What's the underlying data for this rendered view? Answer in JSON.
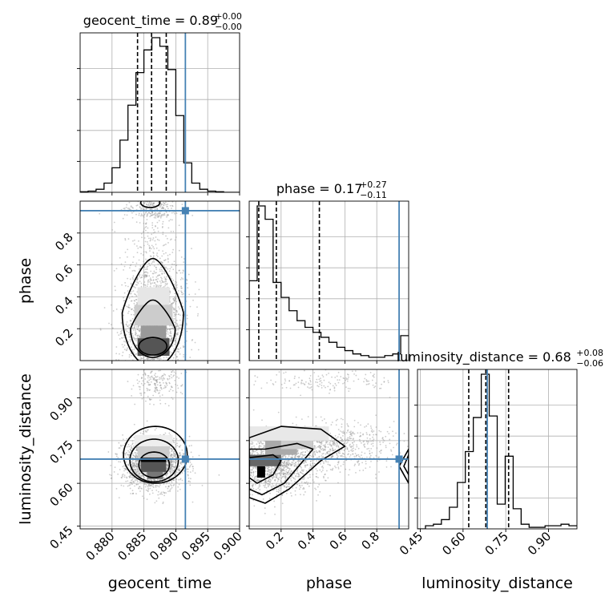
{
  "chart_data": {
    "type": "corner",
    "parameters": [
      "geocent_time",
      "phase",
      "luminosity_distance"
    ],
    "ranges": {
      "geocent_time": [
        0.875,
        0.9
      ],
      "phase": [
        0.0,
        1.0
      ],
      "luminosity_distance": [
        0.44,
        1.0
      ]
    },
    "truths": {
      "geocent_time": 0.8915,
      "phase": 0.94,
      "luminosity_distance": 0.685
    },
    "colors": {
      "truth": "#4682b4",
      "hist": "#000000",
      "grid": "#b0b0b0",
      "scatter": "#9a9a9a"
    },
    "axis_labels": {
      "x": [
        "geocent_time",
        "phase",
        "luminosity_distance"
      ],
      "y": [
        "phase",
        "luminosity_distance"
      ]
    },
    "ticks": {
      "geocent_time": [
        "0.880",
        "0.885",
        "0.890",
        "0.895",
        "0.900"
      ],
      "phase_x": [
        "0.2",
        "0.4",
        "0.6",
        "0.8"
      ],
      "phase_y": [
        "0.2",
        "0.4",
        "0.6",
        "0.8"
      ],
      "luminosity_distance": [
        "0.45",
        "0.60",
        "0.75",
        "0.90"
      ]
    },
    "tick_values": {
      "geocent_time": [
        0.88,
        0.885,
        0.89,
        0.895,
        0.9
      ],
      "phase": [
        0.2,
        0.4,
        0.6,
        0.8
      ],
      "luminosity_distance": [
        0.45,
        0.6,
        0.75,
        0.9
      ]
    },
    "titles": {
      "geocent_time": {
        "label": "geocent_time = 0.89",
        "plus": "+0.00",
        "minus": "−0.00"
      },
      "phase": {
        "label": "phase = 0.17",
        "plus": "+0.27",
        "minus": "−0.11"
      },
      "luminosity_distance": {
        "label": "luminosity_distance = 0.68",
        "plus": "+0.08",
        "minus": "−0.06"
      }
    },
    "hist_geocent_time": {
      "edges_start": 0.875,
      "bin_width": 0.00125,
      "counts": [
        1,
        2,
        5,
        15,
        40,
        85,
        142,
        195,
        232,
        252,
        238,
        200,
        125,
        48,
        15,
        5,
        2,
        1,
        0,
        0
      ],
      "quantiles": [
        0.884,
        0.8862,
        0.8885
      ]
    },
    "hist_phase": {
      "edges_start": 0.0,
      "bin_width": 0.05,
      "counts": [
        0.48,
        0.93,
        0.85,
        0.47,
        0.38,
        0.3,
        0.24,
        0.2,
        0.17,
        0.14,
        0.11,
        0.08,
        0.06,
        0.04,
        0.03,
        0.02,
        0.02,
        0.03,
        0.04,
        0.15
      ],
      "quantiles": [
        0.06,
        0.17,
        0.44
      ]
    },
    "hist_luminosity_distance": {
      "edges_start": 0.44,
      "bin_width": 0.028,
      "counts": [
        0,
        0.02,
        0.03,
        0.06,
        0.14,
        0.3,
        0.5,
        0.72,
        1.0,
        0.73,
        0.16,
        0.47,
        0.13,
        0.03,
        0.01,
        0.01,
        0.02,
        0.02,
        0.03,
        0.02
      ],
      "quantiles": [
        0.62,
        0.68,
        0.76
      ]
    },
    "grid": true
  }
}
